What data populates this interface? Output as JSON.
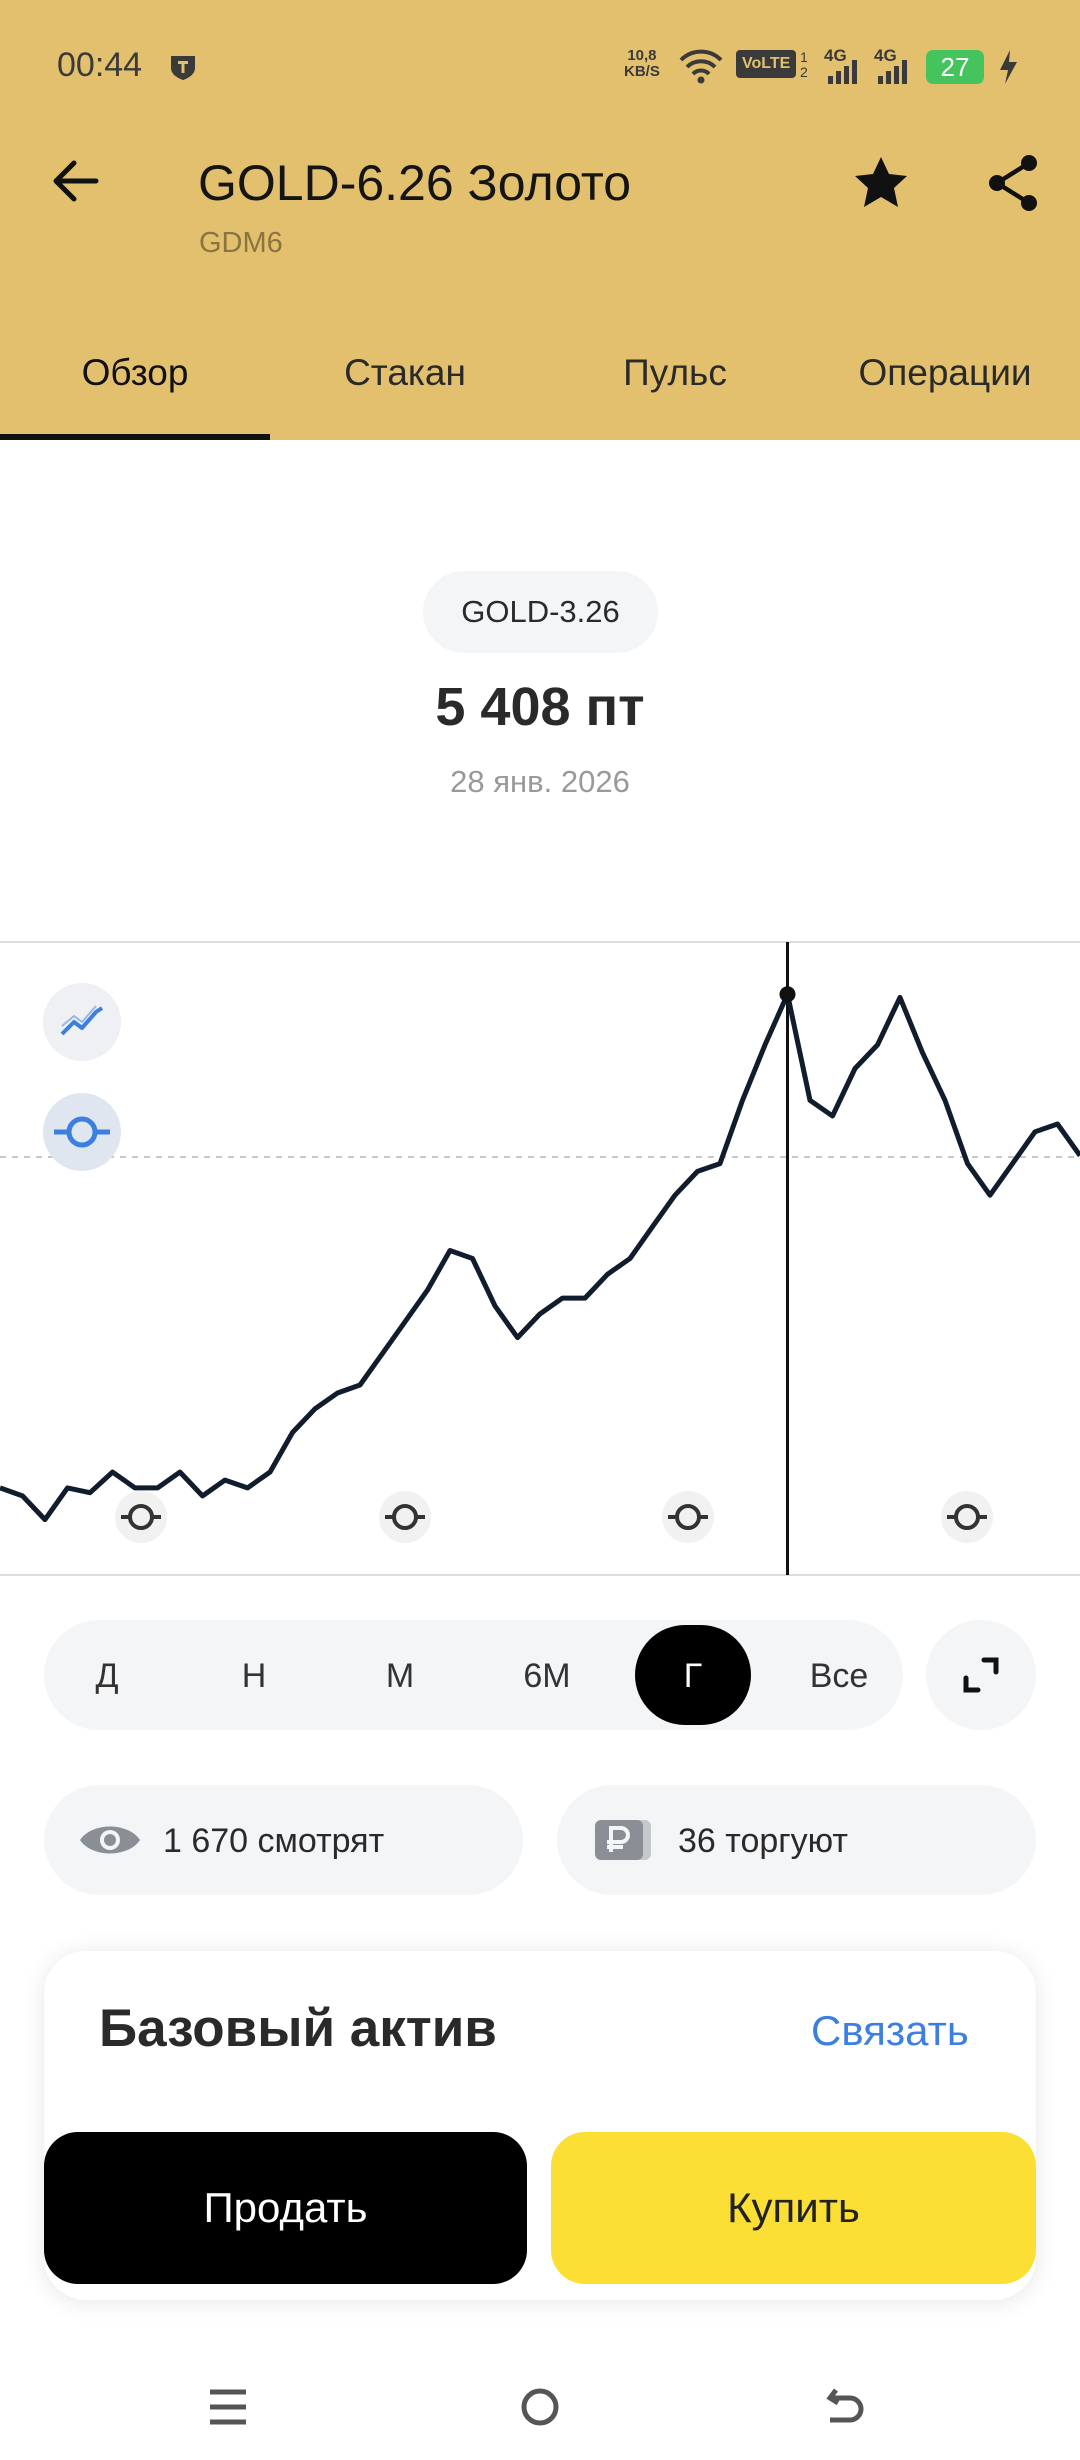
{
  "status_bar": {
    "time": "00:44",
    "speed": "10,8",
    "speed_unit": "KB/S",
    "volte": "VoLTE",
    "network": [
      "4G",
      "4G"
    ],
    "battery": "27"
  },
  "header": {
    "title": "GOLD-6.26 Золото",
    "subtitle": "GDM6"
  },
  "tabs": [
    "Обзор",
    "Стакан",
    "Пульс",
    "Операции"
  ],
  "summary": {
    "badge": "GOLD-3.26",
    "price": "5 408 пт",
    "date": "28 янв. 2026"
  },
  "chart_data": {
    "type": "line",
    "color": "#111d2c",
    "ylim": [
      2281,
      5689
    ],
    "values": [
      2750,
      2707,
      2579,
      2750,
      2724,
      2835,
      2750,
      2750,
      2835,
      2707,
      2792,
      2750,
      2835,
      3048,
      3176,
      3261,
      3304,
      3474,
      3644,
      3815,
      4028,
      3985,
      3730,
      3559,
      3687,
      3772,
      3772,
      3900,
      3985,
      4156,
      4326,
      4454,
      4496,
      4837,
      5135,
      5408,
      4837,
      4752,
      5008,
      5135,
      5391,
      5093,
      4837,
      4496,
      4326,
      4496,
      4667,
      4709,
      4539
    ]
  },
  "periods": [
    "Д",
    "Н",
    "М",
    "6М",
    "Г",
    "Все"
  ],
  "stats": [
    "1 670 смотрят",
    "36 торгуют"
  ],
  "card": {
    "title": "Базовый актив",
    "link": "Связать"
  },
  "buttons": {
    "sell": "Продать",
    "buy": "Купить"
  }
}
